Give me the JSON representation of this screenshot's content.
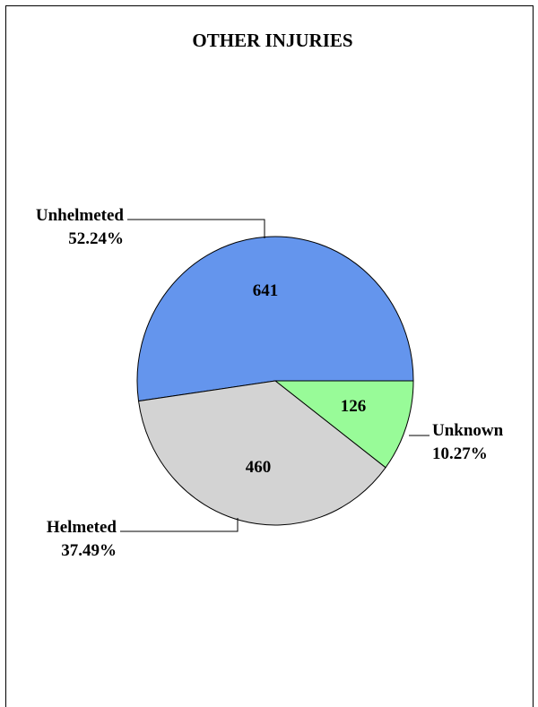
{
  "chart_data": {
    "type": "pie",
    "title": "OTHER INJURIES",
    "slices": [
      {
        "name": "Unhelmeted",
        "value": 641,
        "percent": "52.24%",
        "color": "#6495ED"
      },
      {
        "name": "Unknown",
        "value": 126,
        "percent": "10.27%",
        "color": "#98FB98"
      },
      {
        "name": "Helmeted",
        "value": 460,
        "percent": "37.49%",
        "color": "#D3D3D3"
      }
    ],
    "legend": "none"
  }
}
